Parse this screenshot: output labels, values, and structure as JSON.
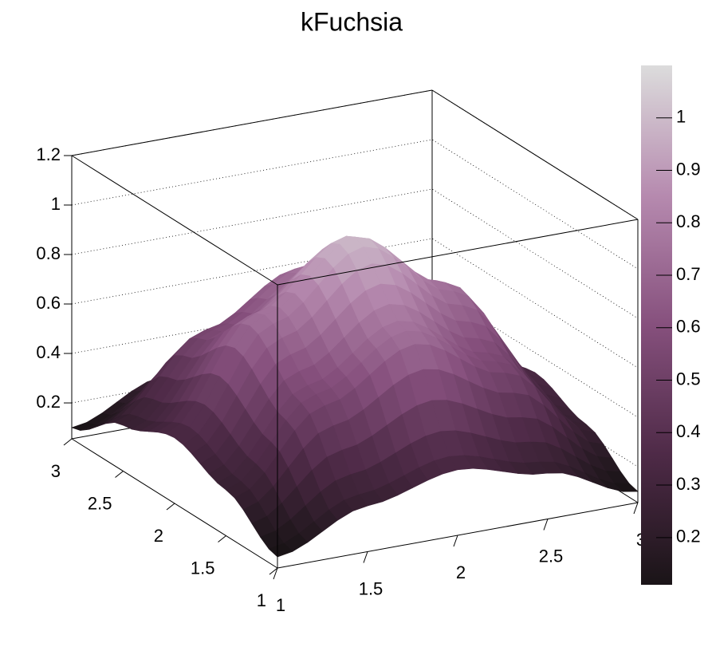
{
  "chart_data": {
    "type": "surface",
    "title": "kFuchsia",
    "x": [
      1,
      1.5,
      2,
      2.5,
      3
    ],
    "y": [
      1,
      1.5,
      2,
      2.5,
      3
    ],
    "z": [
      [
        0.1,
        0.24,
        0.32,
        0.24,
        0.1
      ],
      [
        0.24,
        0.56,
        0.75,
        0.56,
        0.24
      ],
      [
        0.32,
        0.75,
        1.0,
        0.75,
        0.32
      ],
      [
        0.24,
        0.56,
        0.75,
        0.56,
        0.24
      ],
      [
        0.1,
        0.24,
        0.32,
        0.24,
        0.1
      ]
    ],
    "xlim": [
      1,
      3
    ],
    "ylim": [
      1,
      3
    ],
    "zlim": [
      0.055,
      1.2
    ],
    "xticks": [
      1,
      1.5,
      2,
      2.5,
      3
    ],
    "yticks": [
      1,
      1.5,
      2,
      2.5,
      3
    ],
    "zticks": [
      0.2,
      0.4,
      0.6,
      0.8,
      1,
      1.2
    ],
    "colorbar": {
      "lim": [
        0.11,
        1.1
      ],
      "ticks": [
        0.2,
        0.3,
        0.4,
        0.5,
        0.6,
        0.7,
        0.8,
        0.9,
        1
      ]
    },
    "palette": [
      "#1a1417",
      "#4e2a47",
      "#86507d",
      "#b68aaf",
      "#dcdcdc"
    ],
    "grid": true
  }
}
